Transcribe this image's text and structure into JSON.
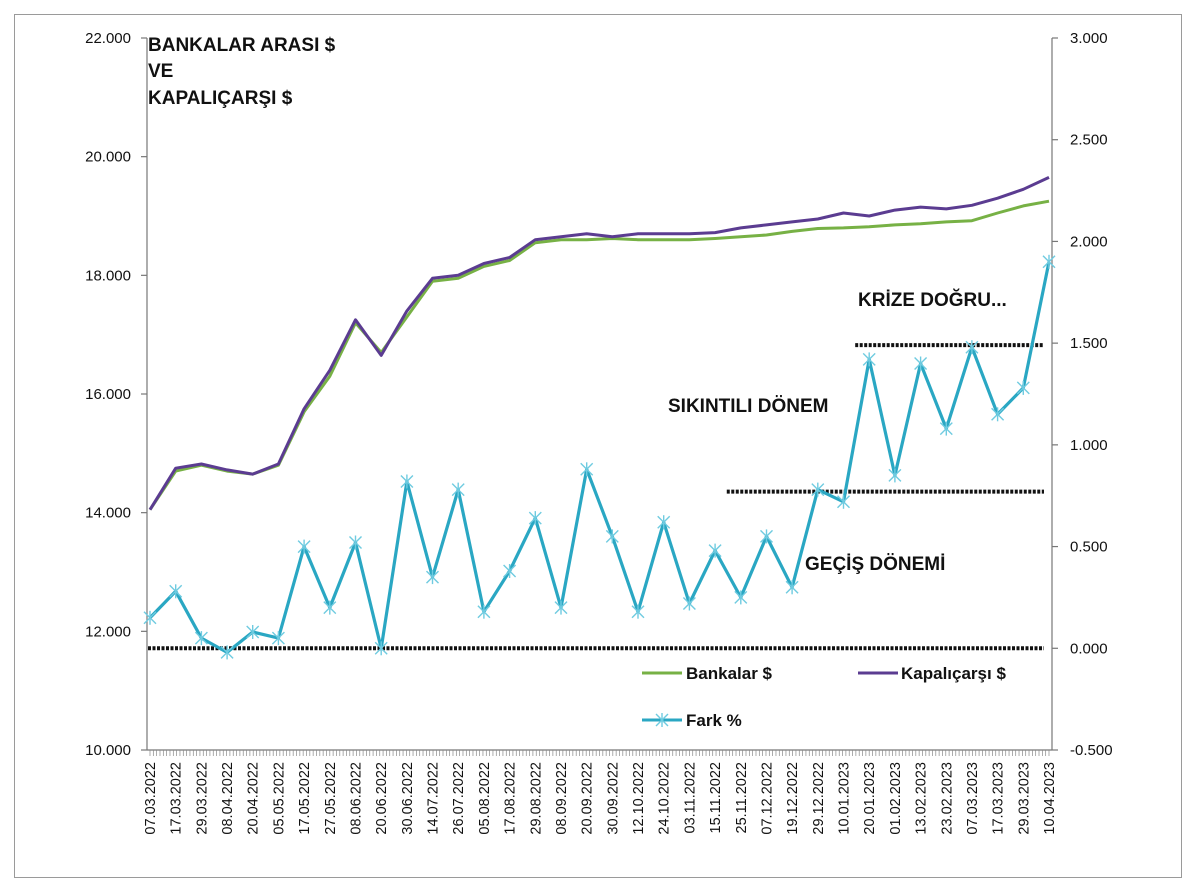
{
  "chart_data": {
    "type": "line",
    "title": [
      "BANKALAR ARASI $",
      "VE",
      "KAPALIÇARŞI $"
    ],
    "xlabel": "",
    "ylabel_left": "",
    "ylabel_right": "",
    "left_axis": {
      "ylim": [
        10000,
        22000
      ],
      "ticks": [
        10000,
        12000,
        14000,
        16000,
        18000,
        20000,
        22000
      ],
      "tick_labels": [
        "10.000",
        "12.000",
        "14.000",
        "16.000",
        "18.000",
        "20.000",
        "22.000"
      ]
    },
    "right_axis": {
      "ylim": [
        -0.5,
        3.0
      ],
      "ticks": [
        -0.5,
        0.0,
        0.5,
        1.0,
        1.5,
        2.0,
        2.5,
        3.0
      ],
      "tick_labels": [
        "-0.500",
        "0.000",
        "0.500",
        "1.000",
        "1.500",
        "2.000",
        "2.500",
        "3.000"
      ]
    },
    "categories": [
      "07.03.2022",
      "17.03.2022",
      "29.03.2022",
      "08.04.2022",
      "20.04.2022",
      "05.05.2022",
      "17.05.2022",
      "27.05.2022",
      "08.06.2022",
      "20.06.2022",
      "30.06.2022",
      "14.07.2022",
      "26.07.2022",
      "05.08.2022",
      "17.08.2022",
      "29.08.2022",
      "08.09.2022",
      "20.09.2022",
      "30.09.2022",
      "12.10.2022",
      "24.10.2022",
      "03.11.2022",
      "15.11.2022",
      "25.11.2022",
      "07.12.2022",
      "19.12.2022",
      "29.12.2022",
      "10.01.2023",
      "20.01.2023",
      "01.02.2023",
      "13.02.2023",
      "23.02.2023",
      "07.03.2023",
      "17.03.2023",
      "29.03.2023",
      "10.04.2023"
    ],
    "series": [
      {
        "name": "Bankalar $",
        "axis": "left",
        "color": "#77b145",
        "values": [
          14050,
          14700,
          14800,
          14700,
          14650,
          14800,
          15700,
          16300,
          17200,
          16700,
          17300,
          17900,
          17950,
          18150,
          18250,
          18550,
          18600,
          18600,
          18620,
          18600,
          18600,
          18600,
          18620,
          18650,
          18680,
          18740,
          18790,
          18800,
          18820,
          18850,
          18870,
          18900,
          18920,
          19050,
          19170,
          19250
        ]
      },
      {
        "name": "Kapalıçarşı $",
        "axis": "left",
        "color": "#5b3c91",
        "values": [
          14050,
          14750,
          14820,
          14720,
          14650,
          14820,
          15750,
          16400,
          17250,
          16650,
          17400,
          17950,
          18000,
          18200,
          18300,
          18600,
          18650,
          18700,
          18650,
          18700,
          18700,
          18700,
          18720,
          18800,
          18850,
          18900,
          18950,
          19050,
          19000,
          19100,
          19150,
          19120,
          19180,
          19300,
          19450,
          19650
        ]
      },
      {
        "name": "Fark %",
        "axis": "right",
        "color": "#2aa7c3",
        "values": [
          0.15,
          0.28,
          0.05,
          -0.02,
          0.08,
          0.05,
          0.5,
          0.2,
          0.52,
          0.0,
          0.82,
          0.35,
          0.78,
          0.18,
          0.38,
          0.64,
          0.2,
          0.88,
          0.55,
          0.18,
          0.62,
          0.22,
          0.48,
          0.25,
          0.55,
          0.3,
          0.78,
          0.72,
          1.42,
          0.85,
          1.4,
          1.08,
          1.48,
          1.15,
          1.28,
          1.9
        ]
      }
    ],
    "reference_lines": [
      {
        "name": "zero-line",
        "axis": "right",
        "value": 0.0,
        "from": "07.03.2022",
        "to": "10.04.2023"
      },
      {
        "name": "gecis-line",
        "axis": "right",
        "value": 0.77,
        "from": "25.11.2022",
        "to": "10.04.2023"
      },
      {
        "name": "kriz-line",
        "axis": "right",
        "value": 1.49,
        "from": "20.01.2023",
        "to": "10.04.2023"
      }
    ],
    "annotations": [
      {
        "id": "gecis",
        "text": "GEÇİŞ DÖNEMİ"
      },
      {
        "id": "sikintili",
        "text": "SIKINTILI DÖNEM"
      },
      {
        "id": "krize",
        "text": "KRİZE DOĞRU..."
      }
    ],
    "legend": [
      "Bankalar $",
      "Kapalıçarşı $",
      "Fark %"
    ],
    "legend_position": "bottom-right",
    "grid": false
  }
}
